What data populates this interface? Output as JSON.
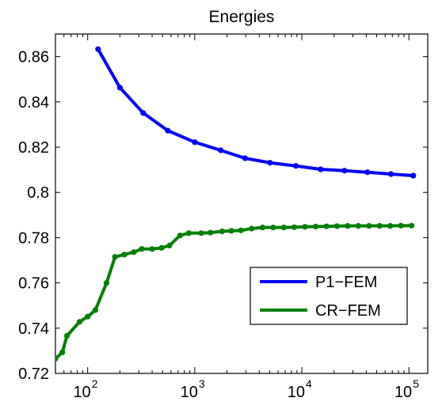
{
  "chart_data": {
    "type": "line",
    "title": "Energies",
    "xlabel": "",
    "ylabel": "",
    "xscale": "log",
    "xlim": [
      50,
      150000
    ],
    "ylim": [
      0.72,
      0.87
    ],
    "grid": false,
    "legend_position": "bottom-right",
    "x_ticks": [
      {
        "value": 100,
        "base": "10",
        "exp": "2"
      },
      {
        "value": 1000,
        "base": "10",
        "exp": "3"
      },
      {
        "value": 10000,
        "base": "10",
        "exp": "4"
      },
      {
        "value": 100000,
        "base": "10",
        "exp": "5"
      }
    ],
    "y_ticks": [
      {
        "value": 0.72,
        "label": "0.72"
      },
      {
        "value": 0.74,
        "label": "0.74"
      },
      {
        "value": 0.76,
        "label": "0.76"
      },
      {
        "value": 0.78,
        "label": "0.78"
      },
      {
        "value": 0.8,
        "label": "0.8"
      },
      {
        "value": 0.82,
        "label": "0.82"
      },
      {
        "value": 0.84,
        "label": "0.84"
      },
      {
        "value": 0.86,
        "label": "0.86"
      }
    ],
    "series": [
      {
        "name": "P1−FEM",
        "color": "#0000ff",
        "points": [
          [
            125,
            0.8633
          ],
          [
            200,
            0.8463
          ],
          [
            330,
            0.8351
          ],
          [
            560,
            0.8273
          ],
          [
            1000,
            0.8222
          ],
          [
            1750,
            0.8186
          ],
          [
            2950,
            0.8151
          ],
          [
            5050,
            0.8131
          ],
          [
            8800,
            0.8117
          ],
          [
            15000,
            0.8102
          ],
          [
            25000,
            0.8096
          ],
          [
            41000,
            0.8089
          ],
          [
            68000,
            0.8081
          ],
          [
            110000,
            0.8074
          ]
        ]
      },
      {
        "name": "CR−FEM",
        "color": "#008000",
        "points": [
          [
            50,
            0.7265
          ],
          [
            58,
            0.7293
          ],
          [
            64,
            0.7366
          ],
          [
            84,
            0.7428
          ],
          [
            100,
            0.7451
          ],
          [
            118,
            0.748
          ],
          [
            150,
            0.76
          ],
          [
            180,
            0.7715
          ],
          [
            220,
            0.7725
          ],
          [
            270,
            0.7736
          ],
          [
            320,
            0.775
          ],
          [
            400,
            0.775
          ],
          [
            490,
            0.7755
          ],
          [
            580,
            0.7765
          ],
          [
            730,
            0.781
          ],
          [
            880,
            0.782
          ],
          [
            1150,
            0.782
          ],
          [
            1400,
            0.7822
          ],
          [
            1800,
            0.7828
          ],
          [
            2200,
            0.783
          ],
          [
            2700,
            0.7832
          ],
          [
            3400,
            0.784
          ],
          [
            4300,
            0.7845
          ],
          [
            5400,
            0.7845
          ],
          [
            6800,
            0.7845
          ],
          [
            8500,
            0.7846
          ],
          [
            10700,
            0.7848
          ],
          [
            13500,
            0.7849
          ],
          [
            17000,
            0.785
          ],
          [
            21300,
            0.7851
          ],
          [
            26800,
            0.7852
          ],
          [
            33700,
            0.7852
          ],
          [
            42400,
            0.7852
          ],
          [
            53300,
            0.7852
          ],
          [
            67000,
            0.7852
          ],
          [
            84300,
            0.7853
          ],
          [
            106000,
            0.7853
          ]
        ]
      }
    ]
  }
}
